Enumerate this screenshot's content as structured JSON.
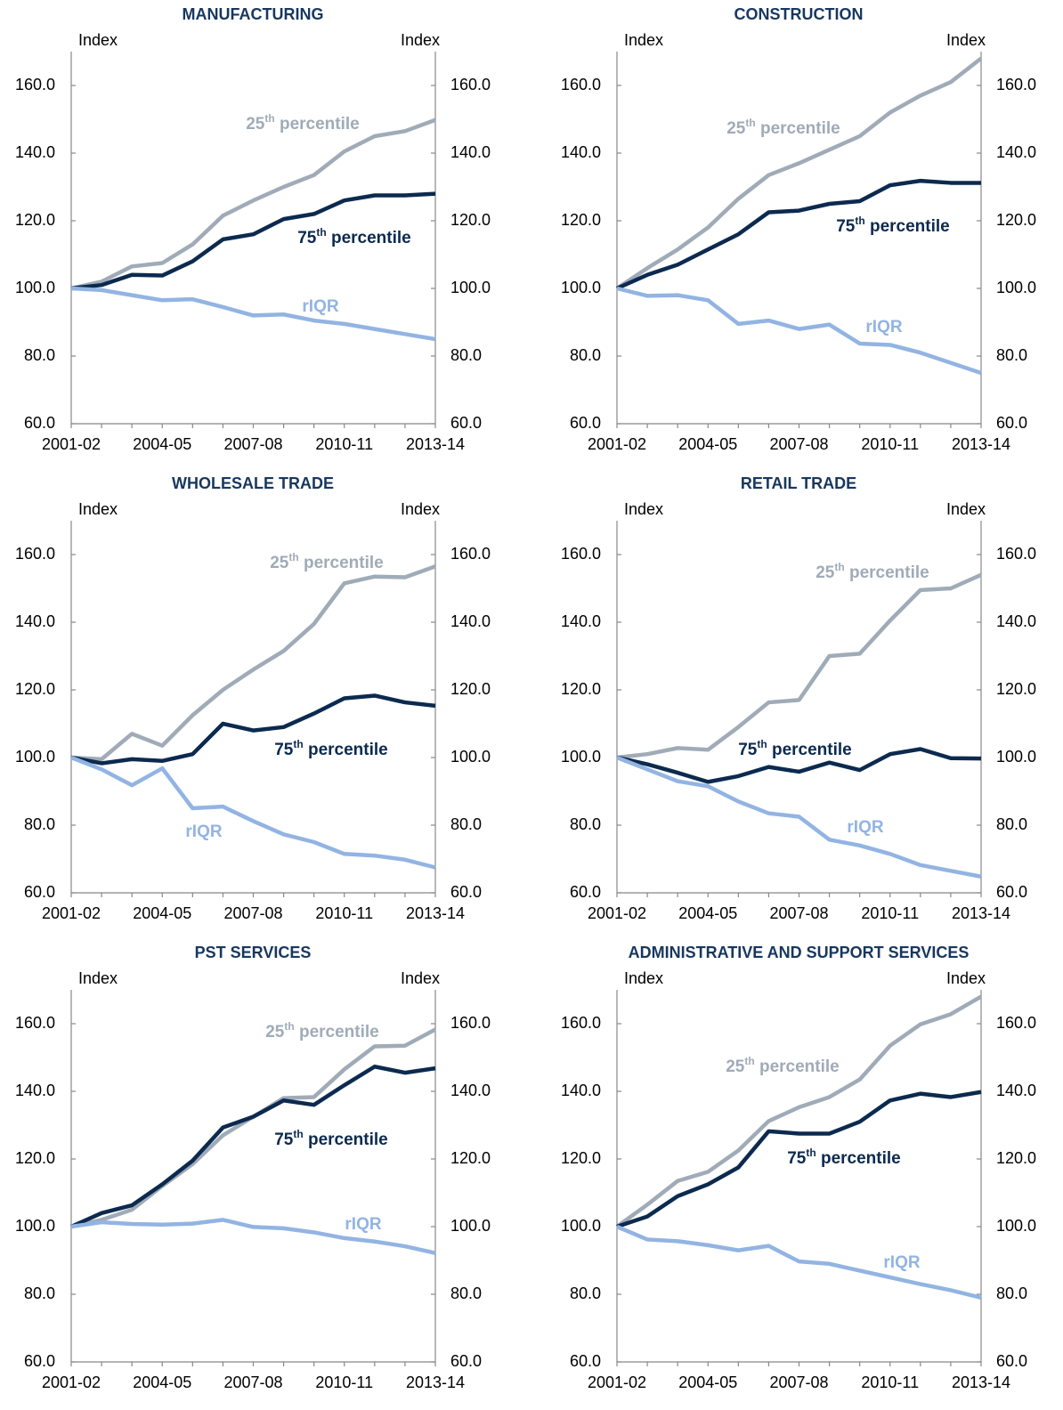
{
  "chart_data": [
    {
      "type": "line",
      "title": "MANUFACTURING",
      "ylabel": "Index",
      "y2label": "Index",
      "categories": [
        "2001-02",
        null,
        null,
        "2004-05",
        null,
        null,
        "2007-08",
        null,
        null,
        "2010-11",
        null,
        null,
        "2013-14"
      ],
      "ylim": [
        60,
        170
      ],
      "yticks": [
        {
          "value": 60,
          "label": "60.0"
        },
        {
          "value": 80,
          "label": "80.0"
        },
        {
          "value": 100,
          "label": "100.0"
        },
        {
          "value": 120,
          "label": "120.0"
        },
        {
          "value": 140,
          "label": "140.0"
        },
        {
          "value": 160,
          "label": "160.0"
        }
      ],
      "y2lim": [
        60,
        170
      ],
      "y2ticks": [
        {
          "value": 60,
          "label": "60.0"
        },
        {
          "value": 80,
          "label": "80.0"
        },
        {
          "value": 100,
          "label": "100.0"
        },
        {
          "value": 120,
          "label": "120.0"
        },
        {
          "value": 140,
          "label": "140.0"
        },
        {
          "value": 160,
          "label": "160.0"
        }
      ],
      "series": [
        {
          "name": "25th percentile",
          "color": "#a0abb8",
          "values": [
            100,
            102,
            106.5,
            107.5,
            113,
            121.5,
            126,
            130,
            133.5,
            140.5,
            145,
            146.5,
            149.8
          ]
        },
        {
          "name": "75th percentile",
          "color": "#0c2a4f",
          "values": [
            100,
            101,
            104,
            103.8,
            108,
            114.5,
            116,
            120.5,
            122,
            126,
            127.5,
            127.5,
            128
          ]
        },
        {
          "name": "rIQR",
          "color": "#92b4e3",
          "values": [
            100,
            99.5,
            98,
            96.5,
            96.8,
            94.5,
            92,
            92.3,
            90.5,
            89.5,
            88,
            86.5,
            85
          ]
        }
      ]
    },
    {
      "type": "line",
      "title": "CONSTRUCTION",
      "ylabel": "Index",
      "y2label": "Index",
      "categories": [
        "2001-02",
        null,
        null,
        "2004-05",
        null,
        null,
        "2007-08",
        null,
        null,
        "2010-11",
        null,
        null,
        "2013-14"
      ],
      "ylim": [
        60,
        170
      ],
      "yticks": [
        {
          "value": 60,
          "label": "60.0"
        },
        {
          "value": 80,
          "label": "80.0"
        },
        {
          "value": 100,
          "label": "100.0"
        },
        {
          "value": 120,
          "label": "120.0"
        },
        {
          "value": 140,
          "label": "140.0"
        },
        {
          "value": 160,
          "label": "160.0"
        }
      ],
      "y2lim": [
        60,
        170
      ],
      "y2ticks": [
        {
          "value": 60,
          "label": "60.0"
        },
        {
          "value": 80,
          "label": "80.0"
        },
        {
          "value": 100,
          "label": "100.0"
        },
        {
          "value": 120,
          "label": "120.0"
        },
        {
          "value": 140,
          "label": "140.0"
        },
        {
          "value": 160,
          "label": "160.0"
        }
      ],
      "series": [
        {
          "name": "25th percentile",
          "color": "#a0abb8",
          "values": [
            100,
            106,
            111.5,
            118,
            126.5,
            133.5,
            137,
            141,
            145,
            152,
            157,
            161,
            168
          ]
        },
        {
          "name": "75th percentile",
          "color": "#0c2a4f",
          "values": [
            100,
            104,
            107,
            111.5,
            116,
            122.5,
            123,
            125,
            125.8,
            130.5,
            131.8,
            131.2,
            131.2
          ]
        },
        {
          "name": "rIQR",
          "color": "#92b4e3",
          "values": [
            100,
            97.8,
            98,
            96.5,
            89.5,
            90.5,
            88,
            89.3,
            83.7,
            83.3,
            81,
            78,
            75
          ]
        }
      ]
    },
    {
      "type": "line",
      "title": "WHOLESALE TRADE",
      "ylabel": "Index",
      "y2label": "Index",
      "categories": [
        "2001-02",
        null,
        null,
        "2004-05",
        null,
        null,
        "2007-08",
        null,
        null,
        "2010-11",
        null,
        null,
        "2013-14"
      ],
      "ylim": [
        60,
        170
      ],
      "yticks": [
        {
          "value": 60,
          "label": "60.0"
        },
        {
          "value": 80,
          "label": "80.0"
        },
        {
          "value": 100,
          "label": "100.0"
        },
        {
          "value": 120,
          "label": "120.0"
        },
        {
          "value": 140,
          "label": "140.0"
        },
        {
          "value": 160,
          "label": "160.0"
        }
      ],
      "y2lim": [
        60,
        170
      ],
      "y2ticks": [
        {
          "value": 60,
          "label": "60.0"
        },
        {
          "value": 80,
          "label": "80.0"
        },
        {
          "value": 100,
          "label": "100.0"
        },
        {
          "value": 120,
          "label": "120.0"
        },
        {
          "value": 140,
          "label": "140.0"
        },
        {
          "value": 160,
          "label": "160.0"
        }
      ],
      "series": [
        {
          "name": "25th percentile",
          "color": "#a0abb8",
          "values": [
            100,
            99.5,
            107,
            103.5,
            112.5,
            120,
            126,
            131.5,
            139.5,
            151.5,
            153.5,
            153.3,
            156.5
          ]
        },
        {
          "name": "75th percentile",
          "color": "#0c2a4f",
          "values": [
            100,
            98.3,
            99.5,
            99,
            101,
            110,
            108,
            109,
            113,
            117.5,
            118.3,
            116.3,
            115.3
          ]
        },
        {
          "name": "rIQR",
          "color": "#92b4e3",
          "values": [
            100,
            96.5,
            91.8,
            96.8,
            85,
            85.5,
            81.2,
            77.3,
            75,
            71.5,
            71,
            69.8,
            67.5
          ]
        }
      ]
    },
    {
      "type": "line",
      "title": "RETAIL TRADE",
      "ylabel": "Index",
      "y2label": "Index",
      "categories": [
        "2001-02",
        null,
        null,
        "2004-05",
        null,
        null,
        "2007-08",
        null,
        null,
        "2010-11",
        null,
        null,
        "2013-14"
      ],
      "ylim": [
        60,
        170
      ],
      "yticks": [
        {
          "value": 60,
          "label": "60.0"
        },
        {
          "value": 80,
          "label": "80.0"
        },
        {
          "value": 100,
          "label": "100.0"
        },
        {
          "value": 120,
          "label": "120.0"
        },
        {
          "value": 140,
          "label": "140.0"
        },
        {
          "value": 160,
          "label": "160.0"
        }
      ],
      "y2lim": [
        60,
        170
      ],
      "y2ticks": [
        {
          "value": 60,
          "label": "60.0"
        },
        {
          "value": 80,
          "label": "80.0"
        },
        {
          "value": 100,
          "label": "100.0"
        },
        {
          "value": 120,
          "label": "120.0"
        },
        {
          "value": 140,
          "label": "140.0"
        },
        {
          "value": 160,
          "label": "160.0"
        }
      ],
      "series": [
        {
          "name": "25th percentile",
          "color": "#a0abb8",
          "values": [
            100,
            101,
            102.8,
            102.3,
            109,
            116.3,
            117,
            130,
            130.7,
            140.5,
            149.5,
            150,
            154
          ]
        },
        {
          "name": "75th percentile",
          "color": "#0c2a4f",
          "values": [
            100,
            98,
            95.5,
            92.8,
            94.5,
            97.2,
            95.8,
            98.5,
            96.3,
            101,
            102.5,
            99.8,
            99.7
          ]
        },
        {
          "name": "rIQR",
          "color": "#92b4e3",
          "values": [
            100,
            96.5,
            93,
            91.5,
            87,
            83.5,
            82.5,
            75.7,
            74,
            71.5,
            68.2,
            66.5,
            64.8
          ]
        }
      ]
    },
    {
      "type": "line",
      "title": "PST SERVICES",
      "ylabel": "Index",
      "y2label": "Index",
      "categories": [
        "2001-02",
        null,
        null,
        "2004-05",
        null,
        null,
        "2007-08",
        null,
        null,
        "2010-11",
        null,
        null,
        "2013-14"
      ],
      "ylim": [
        60,
        170
      ],
      "yticks": [
        {
          "value": 60,
          "label": "60.0"
        },
        {
          "value": 80,
          "label": "80.0"
        },
        {
          "value": 100,
          "label": "100.0"
        },
        {
          "value": 120,
          "label": "120.0"
        },
        {
          "value": 140,
          "label": "140.0"
        },
        {
          "value": 160,
          "label": "160.0"
        }
      ],
      "y2lim": [
        60,
        170
      ],
      "y2ticks": [
        {
          "value": 60,
          "label": "60.0"
        },
        {
          "value": 80,
          "label": "80.0"
        },
        {
          "value": 100,
          "label": "100.0"
        },
        {
          "value": 120,
          "label": "120.0"
        },
        {
          "value": 140,
          "label": "140.0"
        },
        {
          "value": 160,
          "label": "160.0"
        }
      ],
      "series": [
        {
          "name": "25th percentile",
          "color": "#a0abb8",
          "values": [
            100,
            102,
            105,
            112,
            118.5,
            127,
            132.5,
            138,
            138.3,
            146.5,
            153.3,
            153.5,
            158.3
          ]
        },
        {
          "name": "75th percentile",
          "color": "#0c2a4f",
          "values": [
            100,
            104,
            106.3,
            112.5,
            119.5,
            129.3,
            132.5,
            137.3,
            136,
            141.8,
            147.3,
            145.5,
            146.8
          ]
        },
        {
          "name": "rIQR",
          "color": "#92b4e3",
          "values": [
            100,
            101.3,
            100.8,
            100.6,
            100.9,
            102,
            99.9,
            99.5,
            98.3,
            96.6,
            95.6,
            94.2,
            92.2
          ]
        }
      ]
    },
    {
      "type": "line",
      "title": "ADMINISTRATIVE AND SUPPORT SERVICES",
      "ylabel": "Index",
      "y2label": "Index",
      "categories": [
        "2001-02",
        null,
        null,
        "2004-05",
        null,
        null,
        "2007-08",
        null,
        null,
        "2010-11",
        null,
        null,
        "2013-14"
      ],
      "ylim": [
        60,
        170
      ],
      "yticks": [
        {
          "value": 60,
          "label": "60.0"
        },
        {
          "value": 80,
          "label": "80.0"
        },
        {
          "value": 100,
          "label": "100.0"
        },
        {
          "value": 120,
          "label": "120.0"
        },
        {
          "value": 140,
          "label": "140.0"
        },
        {
          "value": 160,
          "label": "160.0"
        }
      ],
      "y2lim": [
        60,
        170
      ],
      "y2ticks": [
        {
          "value": 60,
          "label": "60.0"
        },
        {
          "value": 80,
          "label": "80.0"
        },
        {
          "value": 100,
          "label": "100.0"
        },
        {
          "value": 120,
          "label": "120.0"
        },
        {
          "value": 140,
          "label": "140.0"
        },
        {
          "value": 160,
          "label": "160.0"
        }
      ],
      "series": [
        {
          "name": "25th percentile",
          "color": "#a0abb8",
          "values": [
            100,
            106.5,
            113.5,
            116.2,
            122.5,
            131.2,
            135.3,
            138.3,
            143.5,
            153.5,
            159.8,
            162.8,
            168
          ]
        },
        {
          "name": "75th percentile",
          "color": "#0c2a4f",
          "values": [
            100,
            103,
            109,
            112.5,
            117.5,
            128.2,
            127.5,
            127.5,
            131,
            137.3,
            139.3,
            138.3,
            139.8
          ]
        },
        {
          "name": "rIQR",
          "color": "#92b4e3",
          "values": [
            100,
            96.2,
            95.7,
            94.5,
            93,
            94.3,
            89.7,
            89,
            87,
            85,
            83,
            81.2,
            79
          ]
        }
      ]
    }
  ]
}
